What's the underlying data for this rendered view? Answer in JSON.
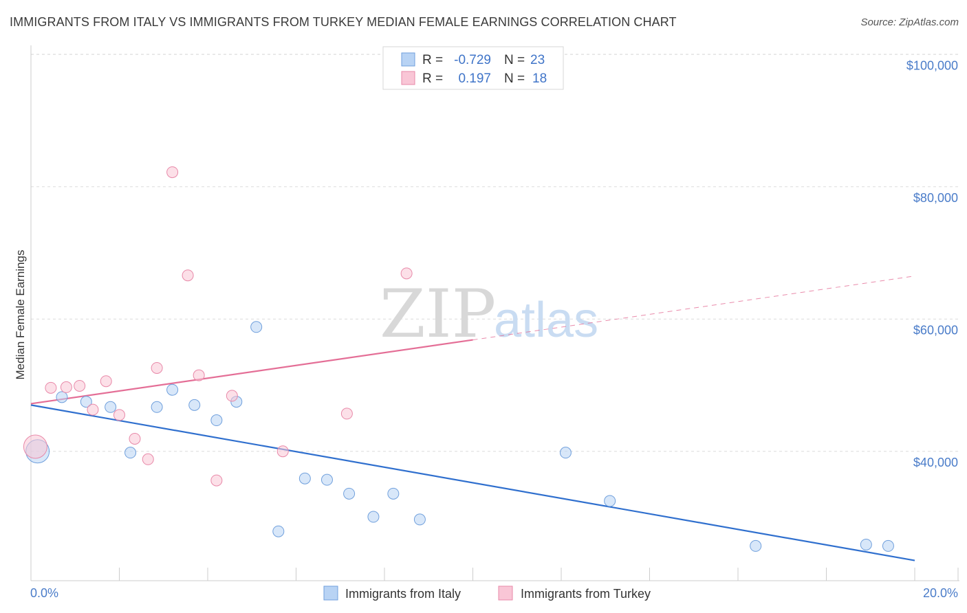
{
  "title": "IMMIGRANTS FROM ITALY VS IMMIGRANTS FROM TURKEY MEDIAN FEMALE EARNINGS CORRELATION CHART",
  "source": "Source: ZipAtlas.com",
  "watermark": {
    "zip": "ZIP",
    "atlas": "atlas"
  },
  "legend": {
    "rows": [
      {
        "r_label": "R =",
        "r_value": "-0.729",
        "n_label": "N =",
        "n_value": "23",
        "color": "#b8d3f4",
        "border": "#6f9fdc"
      },
      {
        "r_label": "R =",
        "r_value": "0.197",
        "n_label": "N =",
        "n_value": "18",
        "color": "#f9c6d6",
        "border": "#e888a8"
      }
    ]
  },
  "chart_data": {
    "type": "scatter",
    "title": "IMMIGRANTS FROM ITALY VS IMMIGRANTS FROM TURKEY MEDIAN FEMALE EARNINGS CORRELATION CHART",
    "xlabel": "",
    "ylabel": "Median Female Earnings",
    "xlim": [
      0,
      20
    ],
    "ylim": [
      22000,
      102000
    ],
    "x_tick_labels": [
      "0.0%",
      "20.0%"
    ],
    "y_ticks": [
      {
        "value": 40000,
        "label": "$40,000"
      },
      {
        "value": 60000,
        "label": "$60,000"
      },
      {
        "value": 80000,
        "label": "$80,000"
      },
      {
        "value": 100000,
        "label": "$100,000"
      }
    ],
    "series": [
      {
        "name": "Immigrants from Italy",
        "color": "#b8d3f4",
        "stroke": "#6f9fdc",
        "line_color": "#2f6fce",
        "trend": {
          "x0": 0,
          "y0": 47000,
          "x1": 20,
          "y1": 23500,
          "dashed_from": null
        },
        "points": [
          {
            "x": 0.15,
            "y": 40000,
            "big": true
          },
          {
            "x": 0.7,
            "y": 48200
          },
          {
            "x": 1.25,
            "y": 47500
          },
          {
            "x": 1.8,
            "y": 46700
          },
          {
            "x": 2.25,
            "y": 39800
          },
          {
            "x": 2.85,
            "y": 46700
          },
          {
            "x": 3.2,
            "y": 49300
          },
          {
            "x": 3.7,
            "y": 47000
          },
          {
            "x": 4.2,
            "y": 44700
          },
          {
            "x": 4.65,
            "y": 47500
          },
          {
            "x": 5.1,
            "y": 58800
          },
          {
            "x": 5.6,
            "y": 27900
          },
          {
            "x": 6.2,
            "y": 35900
          },
          {
            "x": 6.7,
            "y": 35700
          },
          {
            "x": 7.2,
            "y": 33600
          },
          {
            "x": 7.75,
            "y": 30100
          },
          {
            "x": 8.2,
            "y": 33600
          },
          {
            "x": 8.8,
            "y": 29700
          },
          {
            "x": 12.1,
            "y": 39800
          },
          {
            "x": 13.1,
            "y": 32500
          },
          {
            "x": 16.4,
            "y": 25700
          },
          {
            "x": 18.9,
            "y": 25900
          },
          {
            "x": 19.4,
            "y": 25700
          }
        ]
      },
      {
        "name": "Immigrants from Turkey",
        "color": "#f9c6d6",
        "stroke": "#e888a8",
        "line_color": "#e46e96",
        "trend": {
          "x0": 0,
          "y0": 47200,
          "x1": 20,
          "y1": 66500,
          "dashed_from": 10
        },
        "points": [
          {
            "x": 0.1,
            "y": 40700,
            "big": true
          },
          {
            "x": 0.45,
            "y": 49600
          },
          {
            "x": 0.8,
            "y": 49700
          },
          {
            "x": 1.1,
            "y": 49900
          },
          {
            "x": 1.4,
            "y": 46300
          },
          {
            "x": 1.7,
            "y": 50600
          },
          {
            "x": 2.0,
            "y": 45500
          },
          {
            "x": 2.35,
            "y": 41900
          },
          {
            "x": 2.65,
            "y": 38800
          },
          {
            "x": 2.85,
            "y": 52600
          },
          {
            "x": 3.2,
            "y": 82200
          },
          {
            "x": 3.55,
            "y": 66600
          },
          {
            "x": 3.8,
            "y": 51500
          },
          {
            "x": 4.2,
            "y": 35600
          },
          {
            "x": 4.55,
            "y": 48400
          },
          {
            "x": 5.7,
            "y": 40000
          },
          {
            "x": 7.15,
            "y": 45700
          },
          {
            "x": 8.5,
            "y": 66900
          }
        ]
      }
    ]
  }
}
